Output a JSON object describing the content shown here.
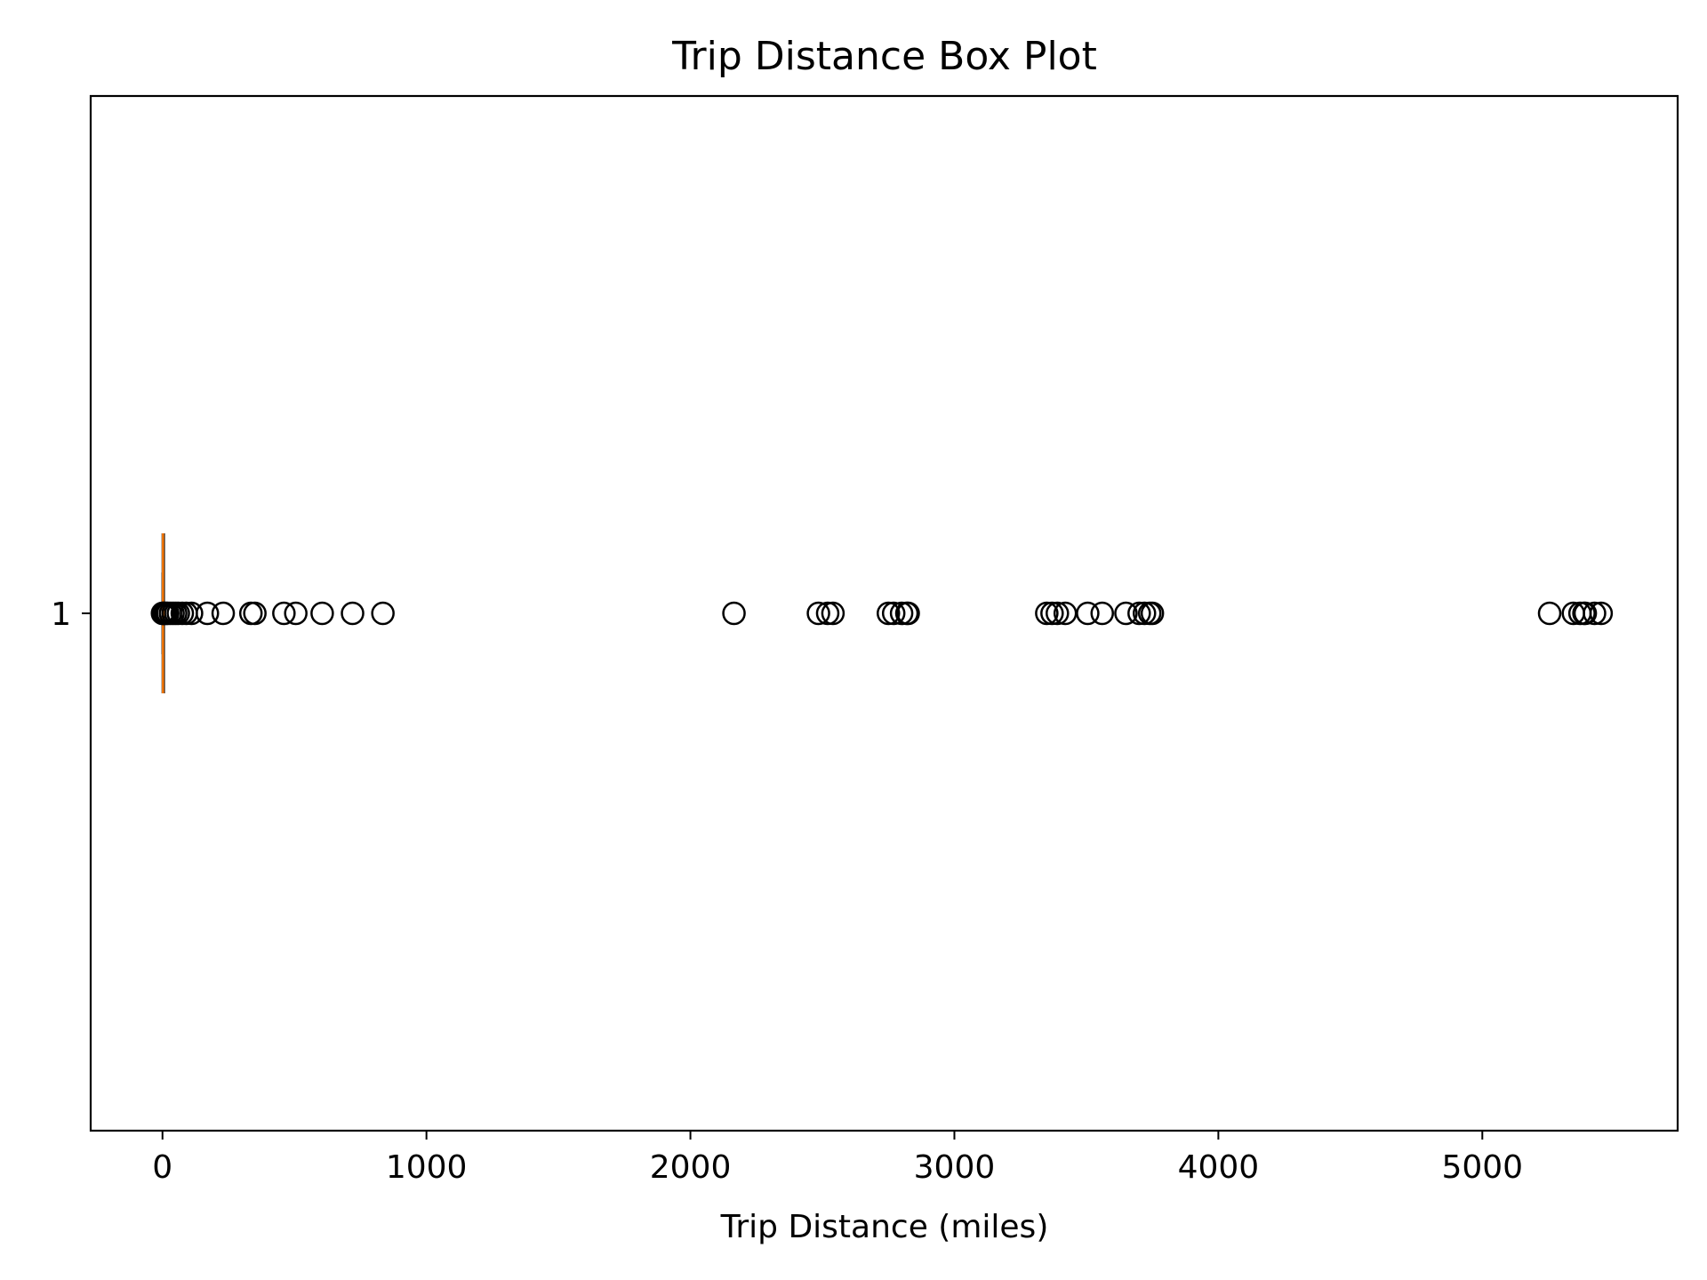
{
  "chart_data": {
    "type": "box",
    "orientation": "horizontal",
    "title": "Trip Distance Box Plot",
    "xlabel": "Trip Distance (miles)",
    "ylabel": "",
    "xlim": [
      -272,
      5740
    ],
    "x_ticks": [
      0,
      1000,
      2000,
      3000,
      4000,
      5000
    ],
    "y_tick_labels": [
      "1"
    ],
    "grid": false,
    "legend": "none",
    "box": {
      "category": "1",
      "whisker_low": 0,
      "q1": 0,
      "median": 2,
      "q3": 3,
      "whisker_high": 6,
      "outliers": [
        0,
        2,
        5,
        10,
        15,
        20,
        30,
        40,
        50,
        60,
        75,
        90,
        110,
        170,
        230,
        335,
        350,
        460,
        505,
        605,
        720,
        835,
        2165,
        2485,
        2520,
        2540,
        2750,
        2770,
        2800,
        2820,
        2825,
        3350,
        3370,
        3390,
        3420,
        3505,
        3560,
        3650,
        3700,
        3720,
        3740,
        3750,
        5255,
        5345,
        5370,
        5385,
        5390,
        5425,
        5450
      ]
    },
    "colors": {
      "median": "#ff7f0e",
      "box": "#000000",
      "outlier_edge": "#000000"
    }
  }
}
